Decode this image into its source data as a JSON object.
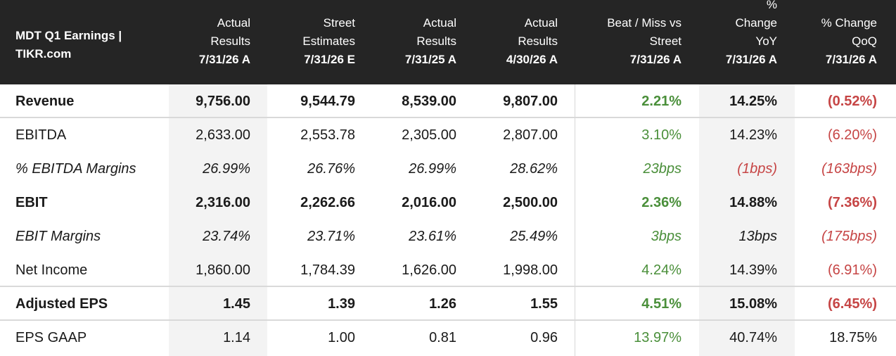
{
  "title_line1": "MDT Q1 Earnings |",
  "title_line2": "TIKR.com",
  "columns": [
    {
      "l1": "Actual",
      "l2": "Results",
      "l3": "",
      "date": "7/31/26 A"
    },
    {
      "l1": "Street",
      "l2": "Estimates",
      "l3": "",
      "date": "7/31/26 E"
    },
    {
      "l1": "Actual",
      "l2": "Results",
      "l3": "",
      "date": "7/31/25 A"
    },
    {
      "l1": "Actual",
      "l2": "Results",
      "l3": "",
      "date": "4/30/26 A"
    },
    {
      "l1": "Beat / Miss vs",
      "l2": "Street",
      "l3": "",
      "date": "7/31/26 A"
    },
    {
      "l1": "%",
      "l2": "Change",
      "l3": "YoY",
      "date": "7/31/26 A"
    },
    {
      "l1": "% Change",
      "l2": "QoQ",
      "l3": "",
      "date": "7/31/26 A"
    }
  ],
  "rows": [
    {
      "label": "Revenue",
      "values": [
        "9,756.00",
        "9,544.79",
        "8,539.00",
        "9,807.00",
        "2.21%",
        "14.25%",
        "(0.52%)"
      ]
    },
    {
      "label": "EBITDA",
      "values": [
        "2,633.00",
        "2,553.78",
        "2,305.00",
        "2,807.00",
        "3.10%",
        "14.23%",
        "(6.20%)"
      ]
    },
    {
      "label": "% EBITDA Margins",
      "values": [
        "26.99%",
        "26.76%",
        "26.99%",
        "28.62%",
        "23bps",
        "(1bps)",
        "(163bps)"
      ]
    },
    {
      "label": "EBIT",
      "values": [
        "2,316.00",
        "2,262.66",
        "2,016.00",
        "2,500.00",
        "2.36%",
        "14.88%",
        "(7.36%)"
      ]
    },
    {
      "label": "EBIT Margins",
      "values": [
        "23.74%",
        "23.71%",
        "23.61%",
        "25.49%",
        "3bps",
        "13bps",
        "(175bps)"
      ]
    },
    {
      "label": "Net Income",
      "values": [
        "1,860.00",
        "1,784.39",
        "1,626.00",
        "1,998.00",
        "4.24%",
        "14.39%",
        "(6.91%)"
      ]
    },
    {
      "label": "Adjusted EPS",
      "values": [
        "1.45",
        "1.39",
        "1.26",
        "1.55",
        "4.51%",
        "15.08%",
        "(6.45%)"
      ]
    },
    {
      "label": "EPS GAAP",
      "values": [
        "1.14",
        "1.00",
        "0.81",
        "0.96",
        "13.97%",
        "40.74%",
        "18.75%"
      ]
    }
  ],
  "colors": {
    "positive": "#4a8f3a",
    "negative": "#c64545",
    "header_bg": "#252525"
  }
}
